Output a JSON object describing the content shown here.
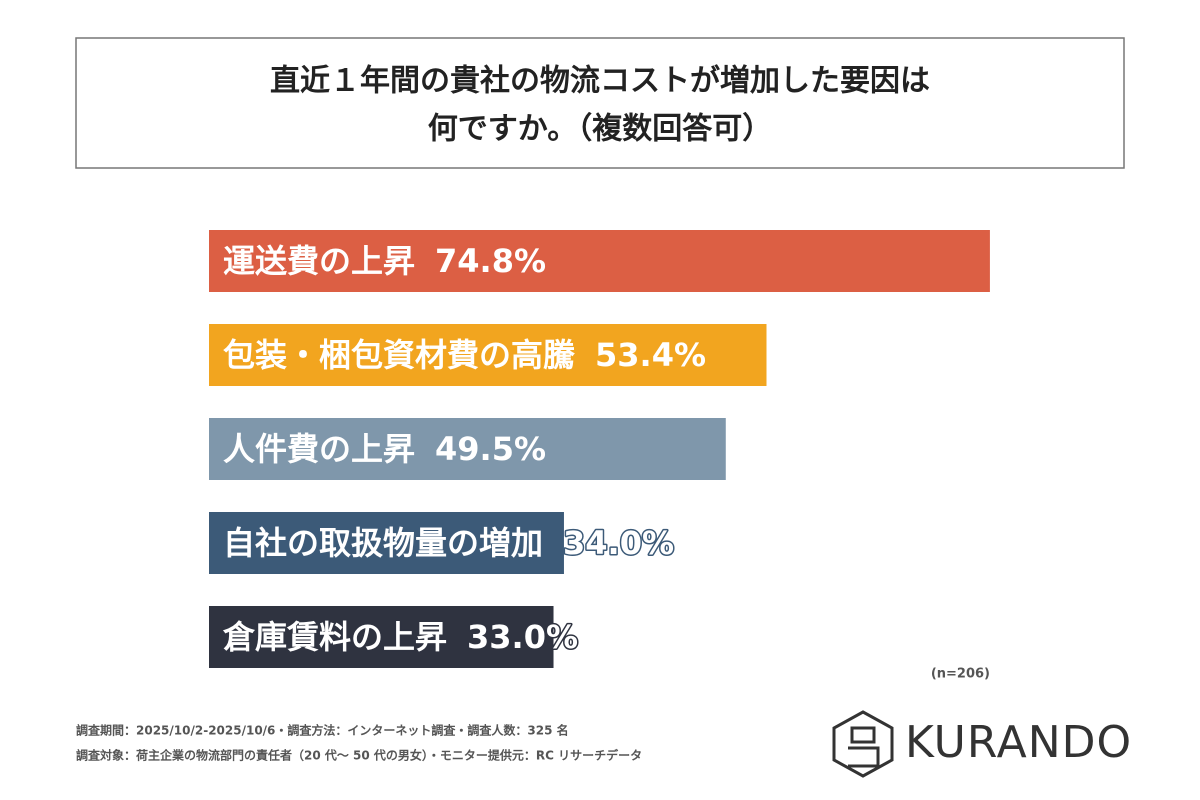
{
  "chart_data": {
    "type": "bar",
    "orientation": "horizontal",
    "title": [
      "直近１年間の貴社の物流コストが増加した要因は",
      "何ですか。（複数回答可）"
    ],
    "categories": [
      "運送費の上昇",
      "包装・梱包資材費の高騰",
      "人件費の上昇",
      "自社の取扱物量の増加",
      "倉庫賃料の上昇"
    ],
    "values": [
      74.8,
      53.4,
      49.5,
      34.0,
      33.0
    ],
    "value_labels": [
      "74.8%",
      "53.4%",
      "49.5%",
      "34.0%",
      "33.0%"
    ],
    "colors": [
      "#dc5f44",
      "#f2a51f",
      "#7f97ab",
      "#3c5a78",
      "#2f3340"
    ],
    "note": "(n=206)"
  },
  "footnotes": [
    "調査期間：2025/10/2-2025/10/6・調査方法：インターネット調査・調査人数：325 名",
    "調査対象：荷主企業の物流部門の責任者（20 代～ 50 代の男女）・モニター提供元：RC リサーチデータ"
  ],
  "logo": "KURANDO"
}
